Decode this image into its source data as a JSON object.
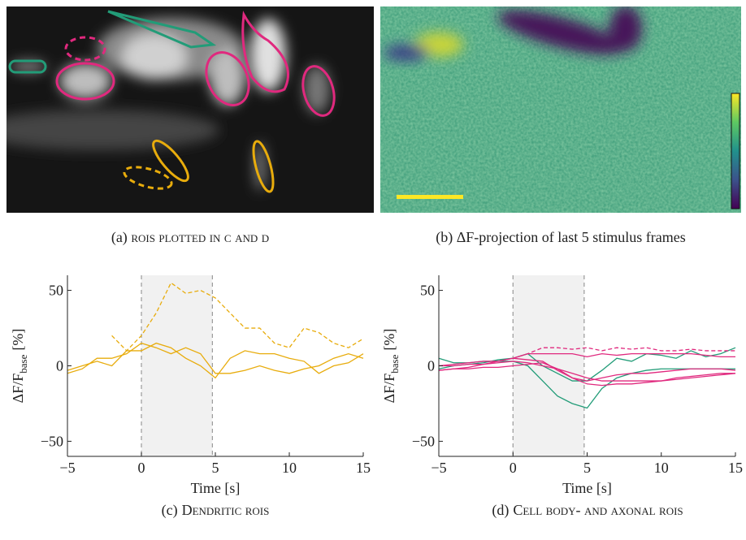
{
  "images": [
    {
      "caption_tag": "(a)",
      "caption": "rois plotted in c and d"
    },
    {
      "caption_tag": "(b)",
      "caption": "ΔF-projection of last 5 stimulus frames"
    }
  ],
  "chart_data": [
    {
      "type": "line",
      "caption_tag": "(c)",
      "caption": "Dendritic rois",
      "xlabel": "Time [s]",
      "ylabel": {
        "main": "ΔF/F",
        "sub": "base",
        "unit": "[%]"
      },
      "stimulus": [
        0,
        4.8
      ],
      "xlim": [
        -5,
        15
      ],
      "ylim": [
        -60,
        60
      ],
      "xticks": [
        {
          "value": -5,
          "label": "−5"
        },
        0,
        5,
        10,
        15
      ],
      "yticks": [
        {
          "value": -50,
          "label": "−50"
        },
        0,
        50
      ],
      "x": [
        -5,
        -4,
        -3,
        -2,
        -1,
        0,
        1,
        2,
        3,
        4,
        5,
        6,
        7,
        8,
        9,
        10,
        11,
        12,
        13,
        14,
        15
      ],
      "series": [
        {
          "color": "#e8ac0c",
          "dashed": true,
          "values": [
            null,
            null,
            null,
            20,
            10,
            20,
            35,
            55,
            48,
            50,
            45,
            35,
            25,
            25,
            15,
            12,
            25,
            22,
            15,
            12,
            18
          ]
        },
        {
          "color": "#e8ac0c",
          "dashed": false,
          "values": [
            -5,
            -2,
            5,
            5,
            8,
            15,
            12,
            8,
            12,
            8,
            -5,
            -5,
            -3,
            0,
            -3,
            -5,
            -2,
            0,
            5,
            8,
            5
          ]
        },
        {
          "color": "#e8ac0c",
          "dashed": false,
          "values": [
            -3,
            0,
            3,
            0,
            10,
            10,
            15,
            12,
            5,
            0,
            -8,
            5,
            10,
            8,
            8,
            5,
            3,
            -5,
            0,
            2,
            8
          ]
        }
      ]
    },
    {
      "type": "line",
      "caption_tag": "(d)",
      "caption": "Cell body- and axonal rois",
      "xlabel": "Time [s]",
      "ylabel": {
        "main": "ΔF/F",
        "sub": "base",
        "unit": "[%]"
      },
      "stimulus": [
        0,
        4.8
      ],
      "xlim": [
        -5,
        15
      ],
      "ylim": [
        -60,
        60
      ],
      "xticks": [
        {
          "value": -5,
          "label": "−5"
        },
        0,
        5,
        10,
        15
      ],
      "yticks": [
        {
          "value": -50,
          "label": "−50"
        },
        0,
        50
      ],
      "x": [
        -5,
        -4,
        -3,
        -2,
        -1,
        0,
        1,
        2,
        3,
        4,
        5,
        6,
        7,
        8,
        9,
        10,
        11,
        12,
        13,
        14,
        15
      ],
      "series": [
        {
          "color": "#229c78",
          "dashed": false,
          "values": [
            5,
            2,
            2,
            3,
            3,
            3,
            0,
            -10,
            -20,
            -25,
            -28,
            -15,
            -8,
            -5,
            -3,
            -2,
            -2,
            -2,
            -2,
            -2,
            -2
          ]
        },
        {
          "color": "#229c78",
          "dashed": false,
          "values": [
            -2,
            0,
            1,
            2,
            4,
            5,
            8,
            0,
            -5,
            -10,
            -10,
            -3,
            5,
            3,
            8,
            7,
            5,
            10,
            6,
            8,
            12
          ]
        },
        {
          "color": "#e0297e",
          "dashed": true,
          "values": [
            null,
            null,
            null,
            null,
            null,
            5,
            8,
            12,
            12,
            11,
            12,
            10,
            12,
            11,
            12,
            10,
            10,
            11,
            10,
            10,
            10
          ]
        },
        {
          "color": "#e0297e",
          "dashed": false,
          "values": [
            0,
            1,
            2,
            3,
            3,
            5,
            8,
            8,
            8,
            8,
            6,
            8,
            7,
            8,
            8,
            8,
            8,
            8,
            7,
            6,
            6
          ]
        },
        {
          "color": "#e0297e",
          "dashed": false,
          "values": [
            -3,
            -2,
            -1,
            1,
            3,
            5,
            4,
            3,
            -3,
            -8,
            -10,
            -8,
            -6,
            -5,
            -5,
            -4,
            -3,
            -2,
            -2,
            -2,
            -3
          ]
        },
        {
          "color": "#e0297e",
          "dashed": false,
          "values": [
            0,
            0,
            1,
            1,
            2,
            3,
            2,
            0,
            -2,
            -5,
            -8,
            -10,
            -10,
            -10,
            -10,
            -10,
            -8,
            -7,
            -6,
            -5,
            -5
          ]
        },
        {
          "color": "#e0297e",
          "dashed": false,
          "values": [
            -3,
            -2,
            -2,
            -1,
            -1,
            0,
            1,
            2,
            -2,
            -8,
            -12,
            -13,
            -12,
            -12,
            -11,
            -10,
            -9,
            -8,
            -7,
            -6,
            -5
          ]
        }
      ]
    }
  ]
}
